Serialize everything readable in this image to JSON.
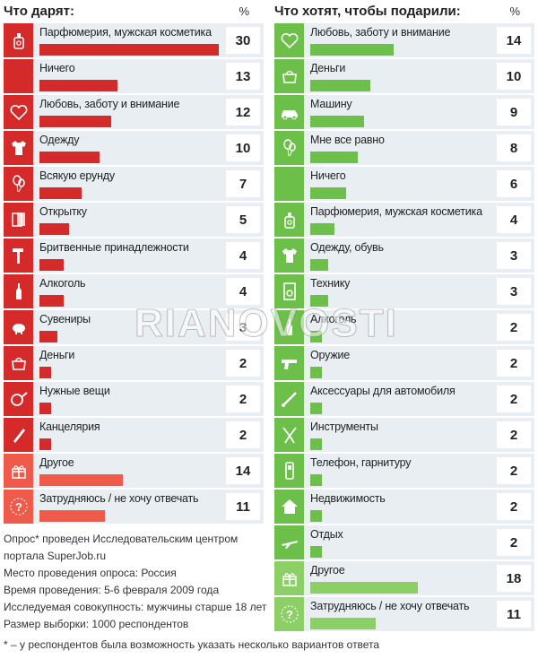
{
  "chart_data": [
    {
      "type": "bar",
      "title": "Что дарят:",
      "unit_label": "%",
      "color": "#d42a2a",
      "color_light": "#ef5a4a",
      "xlim": [
        0,
        30
      ],
      "categories": [
        "Парфюмерия, мужская косметика",
        "Ничего",
        "Любовь, заботу и внимание",
        "Одежду",
        "Всякую ерунду",
        "Открытку",
        "Бритвенные принадлежности",
        "Алкоголь",
        "Сувениры",
        "Деньги",
        "Нужные вещи",
        "Канцелярия",
        "Другое",
        "Затрудняюсь / не хочу отвечать"
      ],
      "values": [
        30,
        13,
        12,
        10,
        7,
        5,
        4,
        4,
        3,
        2,
        2,
        2,
        14,
        11
      ],
      "icons": [
        "perfume-icon",
        "blank-icon",
        "heart-icon",
        "shirt-icon",
        "balloons-icon",
        "card-icon",
        "razor-icon",
        "bottle-icon",
        "piggy-bank-icon",
        "purse-icon",
        "frying-pan-icon",
        "pen-icon",
        "gift-icon",
        "question-icon"
      ],
      "light": [
        false,
        false,
        false,
        false,
        false,
        false,
        false,
        false,
        false,
        false,
        false,
        false,
        true,
        true
      ]
    },
    {
      "type": "bar",
      "title": "Что хотят, чтобы подарили:",
      "unit_label": "%",
      "color": "#6cbf48",
      "color_light": "#8ccf67",
      "xlim": [
        0,
        30
      ],
      "categories": [
        "Любовь, заботу и внимание",
        "Деньги",
        "Машину",
        "Мне все равно",
        "Ничего",
        "Парфюмерия, мужская косметика",
        "Одежду, обувь",
        "Технику",
        "Алкоголь",
        "Оружие",
        "Аксессуары для автомобиля",
        "Инструменты",
        "Телефон, гарнитуру",
        "Недвижимость",
        "Отдых",
        "Другое",
        "Затрудняюсь / не хочу отвечать"
      ],
      "values": [
        14,
        10,
        9,
        8,
        6,
        4,
        3,
        3,
        2,
        2,
        2,
        2,
        2,
        2,
        2,
        18,
        11
      ],
      "icons": [
        "heart-icon",
        "purse-icon",
        "car-icon",
        "balloons-icon",
        "blank-icon",
        "perfume-icon",
        "shirt-icon",
        "appliance-icon",
        "bottle-icon",
        "gun-icon",
        "wiper-icon",
        "pliers-icon",
        "phone-icon",
        "house-icon",
        "plane-icon",
        "gift-icon",
        "question-icon"
      ],
      "light": [
        false,
        false,
        false,
        false,
        false,
        false,
        false,
        false,
        false,
        false,
        false,
        false,
        false,
        false,
        false,
        true,
        true
      ]
    }
  ],
  "notes": [
    "Опрос* проведен Исследовательским центром",
    "портала SuperJob.ru",
    "Место проведения опроса: Россия",
    "Время проведения: 5-6 февраля 2009 года",
    "Исследуемая совокупность: мужчины старше 18 лет",
    "Размер выборки: 1000 респондентов"
  ],
  "footnote": "* – у респондентов была возможность указать несколько вариантов ответа",
  "watermark": "RIANOVOSTI"
}
